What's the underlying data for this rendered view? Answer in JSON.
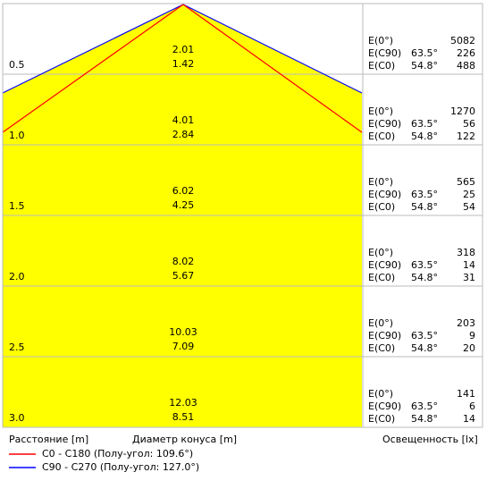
{
  "rows": [
    {
      "distance": "0.5",
      "diameter_a": "2.01",
      "diameter_b": "1.42",
      "e0": "5082",
      "angle_c90": "63.5°",
      "e_c90": "226",
      "angle_c0": "54.8°",
      "e_c0": "488"
    },
    {
      "distance": "1.0",
      "diameter_a": "4.01",
      "diameter_b": "2.84",
      "e0": "1270",
      "angle_c90": "63.5°",
      "e_c90": "56",
      "angle_c0": "54.8°",
      "e_c0": "122"
    },
    {
      "distance": "1.5",
      "diameter_a": "6.02",
      "diameter_b": "4.25",
      "e0": "565",
      "angle_c90": "63.5°",
      "e_c90": "25",
      "angle_c0": "54.8°",
      "e_c0": "54"
    },
    {
      "distance": "2.0",
      "diameter_a": "8.02",
      "diameter_b": "5.67",
      "e0": "318",
      "angle_c90": "63.5°",
      "e_c90": "14",
      "angle_c0": "54.8°",
      "e_c0": "31"
    },
    {
      "distance": "2.5",
      "diameter_a": "10.03",
      "diameter_b": "7.09",
      "e0": "203",
      "angle_c90": "63.5°",
      "e_c90": "9",
      "angle_c0": "54.8°",
      "e_c0": "20"
    },
    {
      "distance": "3.0",
      "diameter_a": "12.03",
      "diameter_b": "8.51",
      "e0": "141",
      "angle_c90": "63.5°",
      "e_c90": "6",
      "angle_c0": "54.8°",
      "e_c0": "14"
    }
  ],
  "labels": {
    "e0": "E(0°)",
    "e_c90": "E(C90)",
    "e_c0": "E(C0)"
  },
  "footer": {
    "distance": "Расстояние [m]",
    "diameter": "Диаметр конуса [m]",
    "illuminance": "Освещенность [lx]"
  },
  "legend": [
    "C0 - C180 (Полу-угол: 109.6°)",
    "C90 - C270 (Полу-угол: 127.0°)"
  ]
}
